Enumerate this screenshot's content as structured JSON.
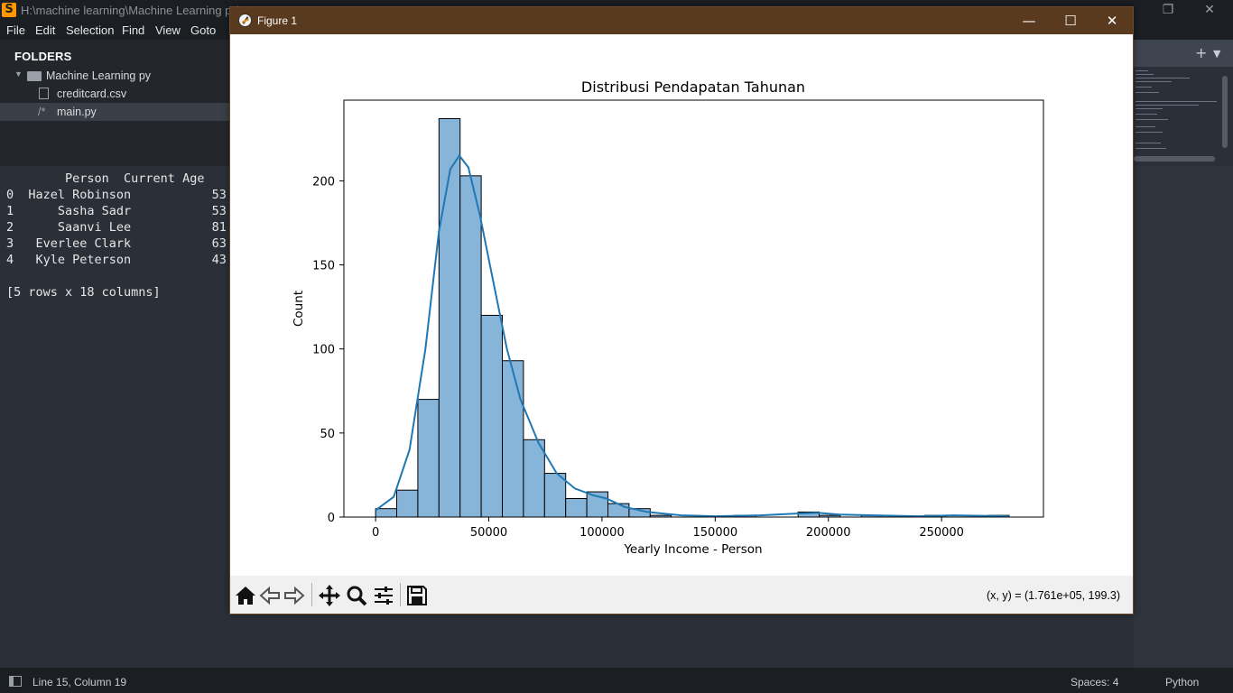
{
  "editor": {
    "title": "H:\\machine learning\\Machine Learning py\\",
    "menu": [
      "File",
      "Edit",
      "Selection",
      "Find",
      "View",
      "Goto"
    ],
    "sidebar": {
      "header": "FOLDERS",
      "folder": "Machine Learning py",
      "files": [
        "creditcard.csv",
        "main.py"
      ],
      "main_prefix": "/*"
    },
    "console_lines": [
      "        Person  Current Age",
      "0  Hazel Robinson           53",
      "1      Sasha Sadr           53",
      "2      Saanvi Lee           81",
      "3   Everlee Clark           63",
      "4   Kyle Peterson           43",
      "",
      "[5 rows x 18 columns]"
    ],
    "status": {
      "position": "Line 15, Column 19",
      "spaces": "Spaces: 4",
      "language": "Python"
    }
  },
  "figure": {
    "window_title": "Figure 1",
    "coords": "(x, y) = (1.761e+05, 199.3)"
  },
  "chart_data": {
    "type": "bar",
    "title": "Distribusi Pendapatan Tahunan",
    "xlabel": "Yearly Income - Person",
    "ylabel": "Count",
    "xlim": [
      -14000,
      295000
    ],
    "ylim": [
      0,
      248
    ],
    "xticks": [
      0,
      50000,
      100000,
      150000,
      200000,
      250000
    ],
    "yticks": [
      0,
      50,
      100,
      150,
      200
    ],
    "bin_width": 9330,
    "bin_start": 0,
    "values": [
      5,
      16,
      70,
      237,
      203,
      120,
      93,
      46,
      26,
      11,
      15,
      8,
      5,
      1,
      0,
      0,
      0,
      1,
      0,
      0,
      3,
      1,
      0,
      1,
      0,
      0,
      1,
      0,
      0,
      1
    ],
    "kde": [
      [
        0,
        4
      ],
      [
        8000,
        12
      ],
      [
        15000,
        40
      ],
      [
        22000,
        100
      ],
      [
        28000,
        170
      ],
      [
        33000,
        207
      ],
      [
        37000,
        215
      ],
      [
        41000,
        208
      ],
      [
        46000,
        180
      ],
      [
        52000,
        140
      ],
      [
        58000,
        100
      ],
      [
        64000,
        70
      ],
      [
        72000,
        44
      ],
      [
        80000,
        26
      ],
      [
        88000,
        17
      ],
      [
        96000,
        13
      ],
      [
        102000,
        11
      ],
      [
        110000,
        6
      ],
      [
        120000,
        3
      ],
      [
        135000,
        1
      ],
      [
        150000,
        0.5
      ],
      [
        170000,
        1
      ],
      [
        185000,
        2
      ],
      [
        195000,
        2.5
      ],
      [
        205000,
        1.5
      ],
      [
        220000,
        1
      ],
      [
        240000,
        0.5
      ],
      [
        255000,
        1
      ],
      [
        280000,
        0.5
      ]
    ],
    "bar_color": "#87b5d9",
    "line_color": "#1f77b4",
    "grid": false
  }
}
